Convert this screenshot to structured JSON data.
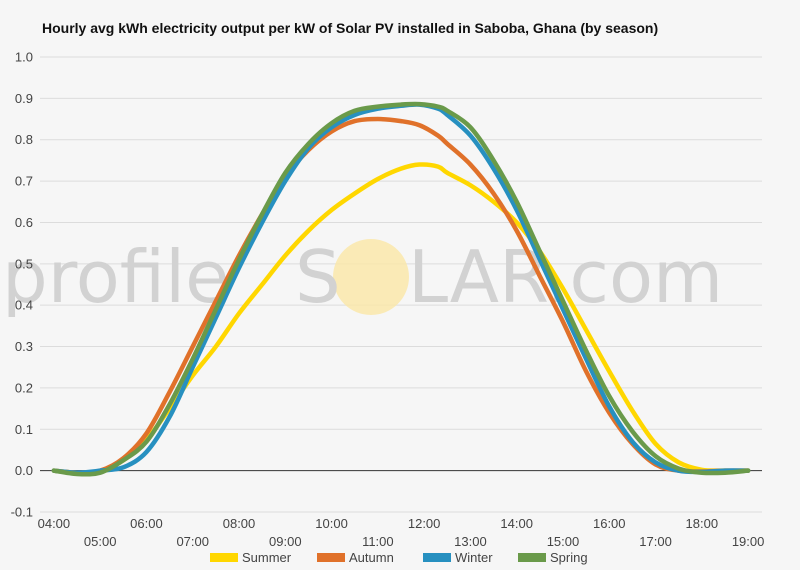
{
  "chart_data": {
    "type": "line",
    "title": "Hourly avg kWh electricity output per kW of Solar PV installed in Saboba, Ghana (by season)",
    "xlabel": "",
    "ylabel": "",
    "ylim": [
      -0.1,
      1.0
    ],
    "yticks": [
      "1.0",
      "0.9",
      "0.8",
      "0.7",
      "0.6",
      "0.5",
      "0.4",
      "0.3",
      "0.2",
      "0.1",
      "0.0",
      "-0.1"
    ],
    "ytick_values": [
      1.0,
      0.9,
      0.8,
      0.7,
      0.6,
      0.5,
      0.4,
      0.3,
      0.2,
      0.1,
      0.0,
      -0.1
    ],
    "xlim": [
      4,
      19
    ],
    "xticks": [
      "04:00",
      "05:00",
      "06:00",
      "07:00",
      "08:00",
      "09:00",
      "10:00",
      "11:00",
      "12:00",
      "13:00",
      "14:00",
      "15:00",
      "16:00",
      "17:00",
      "18:00",
      "19:00"
    ],
    "xtick_values": [
      4,
      5,
      6,
      7,
      8,
      9,
      10,
      11,
      12,
      13,
      14,
      15,
      16,
      17,
      18,
      19
    ],
    "grid": true,
    "legend_position": "bottom",
    "series": [
      {
        "name": "Summer",
        "color": "#ffd700",
        "x": [
          4,
          4.5,
          5,
          5.5,
          6,
          6.5,
          7,
          7.5,
          8,
          8.5,
          9,
          9.5,
          10,
          10.5,
          11,
          11.5,
          11.9,
          12.3,
          12.5,
          13,
          13.5,
          14,
          14.5,
          15,
          15.5,
          16,
          16.5,
          17,
          17.5,
          18,
          18.5,
          19
        ],
        "y": [
          0,
          -0.005,
          0,
          0.025,
          0.075,
          0.15,
          0.23,
          0.3,
          0.38,
          0.45,
          0.52,
          0.58,
          0.63,
          0.67,
          0.705,
          0.73,
          0.74,
          0.735,
          0.72,
          0.69,
          0.65,
          0.6,
          0.53,
          0.44,
          0.34,
          0.24,
          0.145,
          0.065,
          0.02,
          0.002,
          0,
          0
        ]
      },
      {
        "name": "Autumn",
        "color": "#e0712a",
        "x": [
          4,
          4.5,
          5,
          5.5,
          6,
          6.5,
          7,
          7.5,
          8,
          8.5,
          9,
          9.5,
          10,
          10.5,
          11,
          11.5,
          11.9,
          12.3,
          12.5,
          13,
          13.5,
          14,
          14.5,
          15,
          15.5,
          16,
          16.5,
          17,
          17.5,
          18,
          18.5,
          19
        ],
        "y": [
          0,
          -0.005,
          0,
          0.03,
          0.09,
          0.19,
          0.3,
          0.41,
          0.52,
          0.62,
          0.71,
          0.775,
          0.82,
          0.845,
          0.85,
          0.845,
          0.835,
          0.81,
          0.79,
          0.74,
          0.67,
          0.58,
          0.47,
          0.36,
          0.24,
          0.14,
          0.065,
          0.015,
          0,
          -0.002,
          0,
          0
        ]
      },
      {
        "name": "Winter",
        "color": "#2790c0",
        "x": [
          4,
          4.5,
          5,
          5.5,
          6,
          6.5,
          7,
          7.5,
          8,
          8.5,
          9,
          9.5,
          10,
          10.5,
          11,
          11.5,
          11.9,
          12.3,
          12.5,
          13,
          13.5,
          14,
          14.5,
          15,
          15.5,
          16,
          16.5,
          17,
          17.5,
          18,
          18.5,
          19
        ],
        "y": [
          0,
          -0.005,
          0,
          0.008,
          0.045,
          0.13,
          0.25,
          0.37,
          0.49,
          0.6,
          0.7,
          0.78,
          0.83,
          0.86,
          0.875,
          0.882,
          0.885,
          0.875,
          0.86,
          0.81,
          0.73,
          0.63,
          0.51,
          0.39,
          0.27,
          0.155,
          0.07,
          0.02,
          0,
          -0.003,
          0,
          0
        ]
      },
      {
        "name": "Spring",
        "color": "#6a9a4a",
        "x": [
          4,
          4.5,
          5,
          5.5,
          6,
          6.5,
          7,
          7.5,
          8,
          8.5,
          9,
          9.5,
          10,
          10.5,
          11,
          11.5,
          11.9,
          12.3,
          12.5,
          13,
          13.5,
          14,
          14.5,
          15,
          15.5,
          16,
          16.5,
          17,
          17.5,
          18,
          18.5,
          19
        ],
        "y": [
          0,
          -0.008,
          -0.005,
          0.025,
          0.07,
          0.16,
          0.27,
          0.39,
          0.51,
          0.62,
          0.72,
          0.79,
          0.84,
          0.87,
          0.88,
          0.885,
          0.886,
          0.88,
          0.87,
          0.83,
          0.75,
          0.65,
          0.53,
          0.41,
          0.29,
          0.18,
          0.095,
          0.035,
          0.005,
          -0.005,
          -0.005,
          0
        ]
      }
    ]
  },
  "watermark": {
    "left_text": "profile",
    "letter_s": "S",
    "right_text": "LAR.com",
    "sun_color": "#fbe7a6"
  }
}
